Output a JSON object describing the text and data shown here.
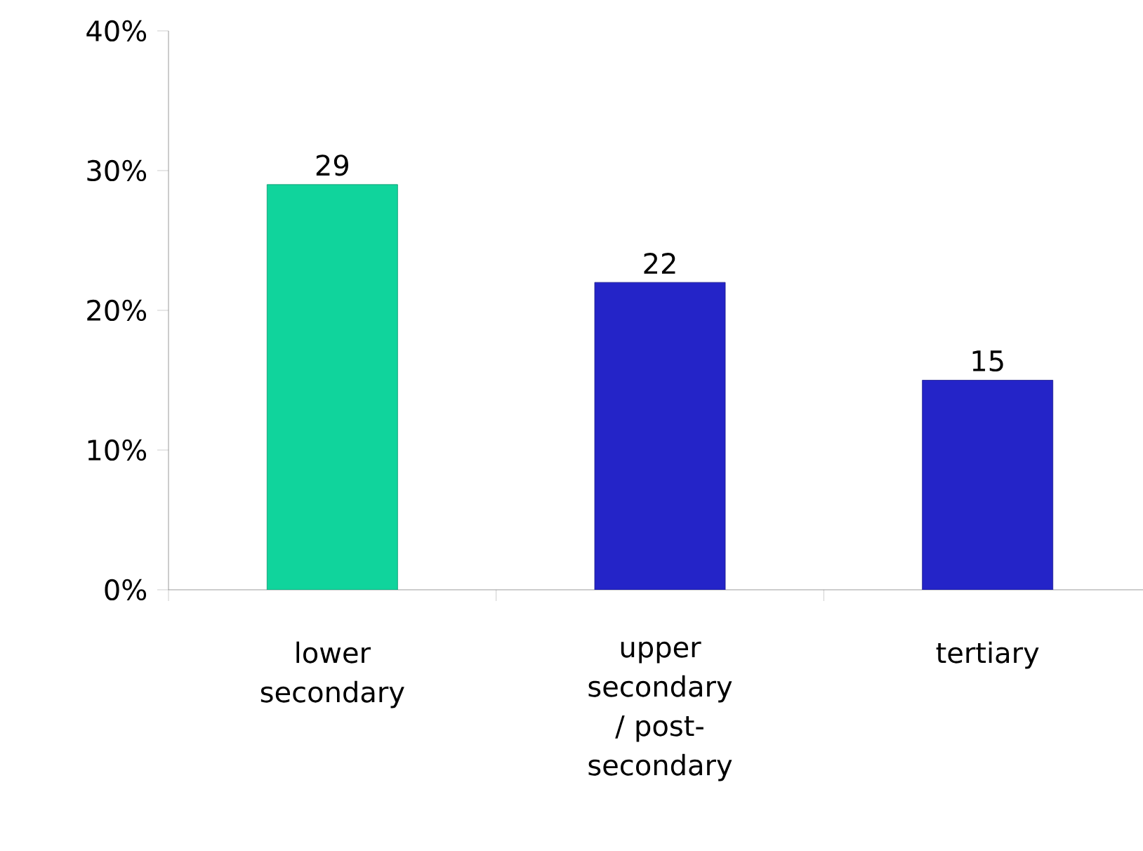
{
  "chart_data": {
    "type": "bar",
    "categories": [
      "lower secondary",
      "upper secondary / post-secondary",
      "tertiary"
    ],
    "values": [
      29,
      22,
      15
    ],
    "colors": [
      "#10d49c",
      "#2424c8",
      "#2424c8"
    ],
    "ylim": [
      0,
      40
    ],
    "yticks": [
      {
        "value": 0,
        "label": "0%"
      },
      {
        "value": 10,
        "label": "10%"
      },
      {
        "value": 20,
        "label": "20%"
      },
      {
        "value": 30,
        "label": "30%"
      },
      {
        "value": 40,
        "label": "40%"
      }
    ],
    "data_labels": true,
    "grid": false
  }
}
